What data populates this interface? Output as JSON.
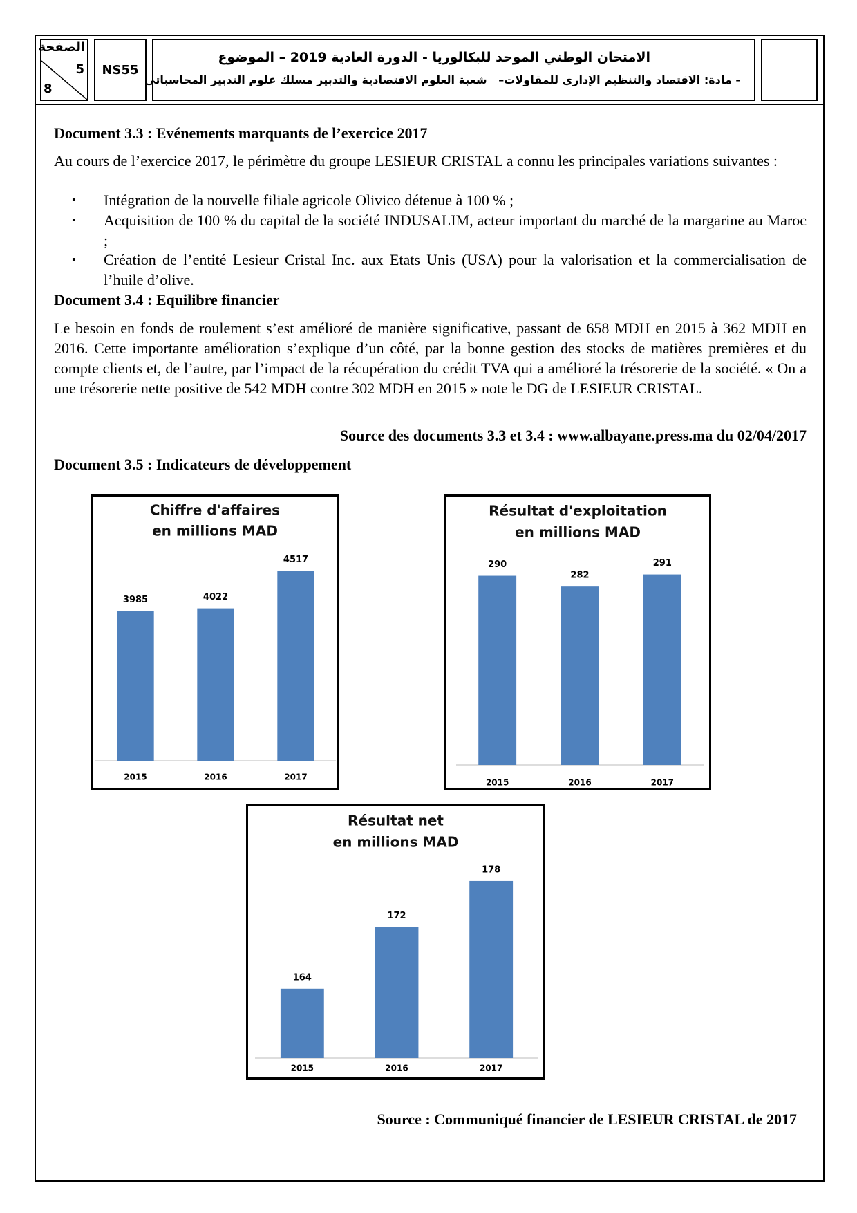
{
  "header": {
    "page_label": "الصفحة",
    "page": "5",
    "total_pages": "8",
    "code": "NS55",
    "title": "الامتحان الوطني الموحد للبكالوريا - الدورة العادية 2019 – الموضوع",
    "subtitle": "- مادة: الاقتصاد والتنظيم الإداري للمقاولات–   شعبة العلوم الاقتصادية والتدبير مسلك علوم التدبير المحاسباتي"
  },
  "document_3_3": {
    "heading": "Document 3.3 : Evénements marquants de l’exercice 2017",
    "intro": "Au cours de l’exercice 2017, le périmètre du groupe LESIEUR CRISTAL a connu les principales variations suivantes :",
    "items": [
      "Intégration de la nouvelle filiale agricole Olivico détenue à 100 % ;",
      "Acquisition de 100 % du capital de la société INDUSALIM, acteur important du marché de la margarine au Maroc ;",
      "Création de l’entité Lesieur Cristal Inc. aux Etats Unis (USA) pour la valorisation et la commercialisation de l’huile d’olive."
    ]
  },
  "document_3_4": {
    "heading": "Document 3.4 : Equilibre financier",
    "text": "Le besoin en fonds de roulement s’est amélioré de manière significative, passant de 658 MDH en 2015 à 362 MDH en 2016. Cette importante amélioration s’explique d’un côté, par la bonne gestion des stocks de matières premières et du compte clients et, de l’autre,  par l’impact de la récupération du crédit TVA qui a amélioré la trésorerie de la société. « On a une trésorerie nette positive de 542 MDH contre 302 MDH en 2015 » note le DG de LESIEUR CRISTAL."
  },
  "source_documents": "Source des documents 3.3 et 3.4 : www.albayane.press.ma du 02/04/2017",
  "document_3_5": {
    "heading": "Document 3.5 : Indicateurs de développement"
  },
  "chart_data": [
    {
      "type": "bar",
      "title": "Chiffre d'affaires",
      "subtitle": "en millions MAD",
      "categories": [
        "2015",
        "2016",
        "2017"
      ],
      "values": [
        3985,
        4022,
        4517
      ],
      "color": "#4f81bd",
      "ylim": [
        2000,
        5000
      ]
    },
    {
      "type": "bar",
      "title": "Résultat d'exploitation",
      "subtitle": "en millions MAD",
      "categories": [
        "2015",
        "2016",
        "2017"
      ],
      "values": [
        290,
        282,
        291
      ],
      "color": "#4f81bd",
      "ylim": [
        150,
        300
      ]
    },
    {
      "type": "bar",
      "title": "Résultat net",
      "subtitle": "en millions MAD",
      "categories": [
        "2015",
        "2016",
        "2017"
      ],
      "values": [
        164,
        172,
        178
      ],
      "color": "#4f81bd",
      "ylim": [
        155,
        185
      ]
    }
  ],
  "source_charts": "Source : Communiqué financier de LESIEUR CRISTAL de 2017"
}
